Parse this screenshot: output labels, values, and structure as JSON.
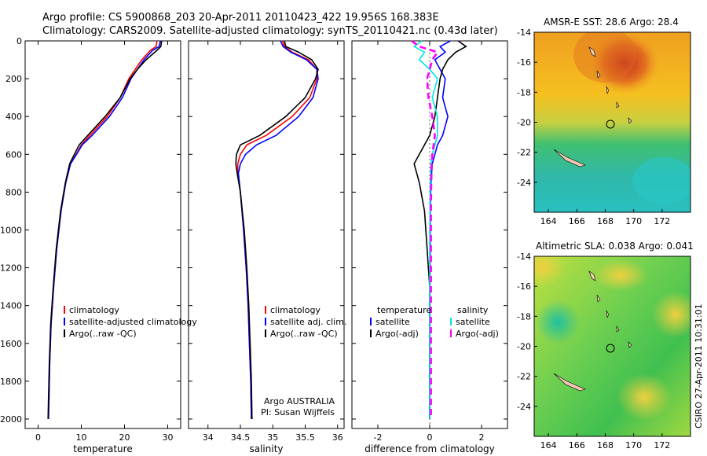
{
  "header": {
    "line1": "Argo profile: CS 5900868_203 20-Apr-2011 20110423_422 19.956S 168.383E",
    "line2": "Climatology: CARS2009. Satellite-adjusted climatology: synTS_20110421.nc (0.43d later)"
  },
  "side_label": "CSIRO 27-Apr-2011 10:31:01",
  "colors": {
    "climatology": "#ff0000",
    "satellite": "#0000ff",
    "argo": "#000000",
    "sal_satellite": "#00e5e5",
    "sal_argo": "#ff00ff"
  },
  "chart_data": [
    {
      "type": "line",
      "xlabel": "temperature",
      "ylabel": "",
      "xlim": [
        -3,
        33
      ],
      "ylim": [
        2050,
        0
      ],
      "xticks": [
        0,
        10,
        20,
        30
      ],
      "yticks": [
        0,
        200,
        400,
        600,
        800,
        1000,
        1200,
        1400,
        1600,
        1800,
        2000
      ],
      "legend": {
        "placement": "lower-left",
        "labels": [
          "climatology",
          "satellite-adjusted climatology",
          "Argo(..raw -QC)"
        ]
      },
      "series": [
        {
          "name": "climatology",
          "color": "#ff0000",
          "x": [
            27.5,
            27.3,
            26,
            24,
            22.5,
            21,
            19,
            16,
            12,
            10,
            8.8,
            7.5,
            6.4,
            5.3,
            4.3,
            3.6,
            3.0,
            2.7,
            2.5,
            2.4
          ],
          "y": [
            0,
            30,
            50,
            100,
            150,
            200,
            300,
            400,
            500,
            550,
            600,
            650,
            750,
            900,
            1100,
            1300,
            1500,
            1700,
            1900,
            2000
          ]
        },
        {
          "name": "satellite-adjusted climatology",
          "color": "#0000ff",
          "x": [
            28.3,
            28,
            26.5,
            24.5,
            23,
            21.5,
            19.5,
            16.5,
            12.5,
            10.2,
            8.9,
            7.5,
            6.4,
            5.3,
            4.3,
            3.6,
            3.0,
            2.7,
            2.5,
            2.4
          ],
          "y": [
            0,
            30,
            50,
            100,
            150,
            200,
            300,
            400,
            500,
            550,
            600,
            650,
            750,
            900,
            1100,
            1300,
            1500,
            1700,
            1900,
            2000
          ]
        },
        {
          "name": "Argo(..raw -QC)",
          "color": "#000000",
          "x": [
            28.6,
            28.4,
            27.5,
            25,
            23,
            21.3,
            19,
            15.5,
            11.5,
            9.5,
            8.4,
            7.3,
            6.3,
            5.2,
            4.2,
            3.5,
            2.9,
            2.6,
            2.4,
            2.3
          ],
          "y": [
            0,
            30,
            50,
            100,
            150,
            200,
            300,
            400,
            500,
            550,
            600,
            650,
            750,
            900,
            1100,
            1300,
            1500,
            1700,
            1900,
            2000
          ]
        }
      ]
    },
    {
      "type": "line",
      "xlabel": "salinity",
      "ylabel": "",
      "xlim": [
        33.7,
        36.1
      ],
      "ylim": [
        2050,
        0
      ],
      "xticks": [
        34,
        34.5,
        35,
        35.5,
        36
      ],
      "legend": {
        "placement": "lower-left",
        "labels": [
          "climatology",
          "satellite adj. clim.",
          "Argo(..raw -QC)"
        ]
      },
      "annotation": [
        "Argo AUSTRALIA",
        "PI: Susan Wijffels"
      ],
      "series": [
        {
          "name": "climatology",
          "color": "#ff0000",
          "x": [
            35.15,
            35.18,
            35.3,
            35.55,
            35.68,
            35.68,
            35.57,
            35.3,
            34.9,
            34.6,
            34.5,
            34.46,
            34.46,
            34.5,
            34.55,
            34.59,
            34.62,
            34.64,
            34.66,
            34.67
          ],
          "y": [
            0,
            30,
            60,
            100,
            150,
            200,
            300,
            400,
            500,
            550,
            600,
            650,
            700,
            800,
            1000,
            1200,
            1400,
            1600,
            1800,
            2000
          ]
        },
        {
          "name": "satellite adj. clim.",
          "color": "#0000ff",
          "x": [
            35.12,
            35.16,
            35.28,
            35.52,
            35.68,
            35.7,
            35.62,
            35.4,
            35.05,
            34.75,
            34.58,
            34.5,
            34.47,
            34.5,
            34.55,
            34.59,
            34.62,
            34.64,
            34.66,
            34.67
          ],
          "y": [
            0,
            30,
            60,
            100,
            150,
            200,
            300,
            400,
            500,
            550,
            600,
            650,
            700,
            800,
            1000,
            1200,
            1400,
            1600,
            1800,
            2000
          ]
        },
        {
          "name": "Argo(..raw -QC)",
          "color": "#000000",
          "x": [
            35.18,
            35.2,
            35.4,
            35.6,
            35.7,
            35.66,
            35.5,
            35.2,
            34.8,
            34.5,
            34.44,
            34.43,
            34.45,
            34.5,
            34.56,
            34.6,
            34.63,
            34.65,
            34.67,
            34.68
          ],
          "y": [
            0,
            30,
            60,
            100,
            150,
            200,
            300,
            400,
            500,
            550,
            600,
            650,
            700,
            800,
            1000,
            1200,
            1400,
            1600,
            1800,
            2000
          ]
        }
      ]
    },
    {
      "type": "line",
      "xlabel": "difference from climatology",
      "ylabel": "",
      "xlim": [
        -3,
        3
      ],
      "ylim": [
        2050,
        0
      ],
      "xticks": [
        -2,
        0,
        2
      ],
      "legend": {
        "placement": "lower-left",
        "labels": [
          "temperature",
          "satellite",
          "Argo(-adj)",
          "salinity",
          "satellite",
          "Argo(-adj)"
        ]
      },
      "series": [
        {
          "name": "temperature satellite",
          "color": "#0000ff",
          "x": [
            0.8,
            0.4,
            0.6,
            0.2,
            0.4,
            0.6,
            0.5,
            0.7,
            0.5,
            0.3,
            0.2,
            0.1,
            0.05,
            0.02,
            0.02,
            0.01,
            0.01,
            0,
            0,
            0
          ],
          "y": [
            0,
            30,
            60,
            100,
            150,
            200,
            300,
            400,
            500,
            550,
            600,
            650,
            750,
            900,
            1100,
            1300,
            1500,
            1700,
            1900,
            2000
          ]
        },
        {
          "name": "temperature Argo(-adj)",
          "color": "#000000",
          "x": [
            1.1,
            1.4,
            1.0,
            0.7,
            0.5,
            0.4,
            0.3,
            0.2,
            0.0,
            -0.2,
            -0.4,
            -0.6,
            -0.4,
            -0.2,
            -0.1,
            0.0,
            0.0,
            0.0,
            0.0,
            0.0
          ],
          "y": [
            0,
            30,
            60,
            100,
            150,
            200,
            300,
            400,
            500,
            550,
            600,
            650,
            750,
            900,
            1100,
            1300,
            1500,
            1700,
            1900,
            2000
          ]
        },
        {
          "name": "salinity satellite",
          "color": "#00e5e5",
          "x": [
            -0.3,
            -0.6,
            -0.2,
            -0.4,
            0.0,
            0.3,
            0.1,
            0.3,
            0.3,
            0.2,
            0.1,
            0.05,
            0.02,
            0.01,
            0.0,
            0.0,
            0.0,
            0.0,
            0.0,
            0.0
          ],
          "y": [
            0,
            30,
            60,
            100,
            150,
            200,
            300,
            400,
            500,
            550,
            600,
            650,
            750,
            900,
            1100,
            1300,
            1500,
            1700,
            1900,
            2000
          ]
        },
        {
          "name": "salinity Argo(-adj)",
          "color": "#ff00ff",
          "x": [
            -0.7,
            -0.4,
            0.3,
            0.1,
            0.0,
            -0.1,
            -0.05,
            0.1,
            0.2,
            0.15,
            0.1,
            0.08,
            0.06,
            0.05,
            0.05,
            0.05,
            0.05,
            0.05,
            0.05,
            0.05
          ],
          "y": [
            0,
            30,
            60,
            100,
            150,
            200,
            300,
            400,
            500,
            550,
            600,
            650,
            750,
            900,
            1100,
            1300,
            1500,
            1700,
            1900,
            2000
          ]
        }
      ]
    },
    {
      "type": "heatmap",
      "title": "AMSR-E SST: 28.6 Argo: 28.4",
      "xlim": [
        163,
        174
      ],
      "ylim": [
        -26,
        -14
      ],
      "xticks": [
        164,
        166,
        168,
        170,
        172
      ],
      "yticks": [
        -14,
        -16,
        -18,
        -20,
        -22,
        -24
      ],
      "marker": {
        "lon": 168.383,
        "lat": -19.956
      }
    },
    {
      "type": "heatmap",
      "title": "Altimetric SLA: 0.038 Argo: 0.041",
      "xlim": [
        163,
        174
      ],
      "ylim": [
        -26,
        -14
      ],
      "xticks": [
        164,
        166,
        168,
        170,
        172
      ],
      "yticks": [
        -14,
        -16,
        -18,
        -20,
        -22,
        -24
      ],
      "marker": {
        "lon": 168.383,
        "lat": -19.956
      }
    }
  ]
}
